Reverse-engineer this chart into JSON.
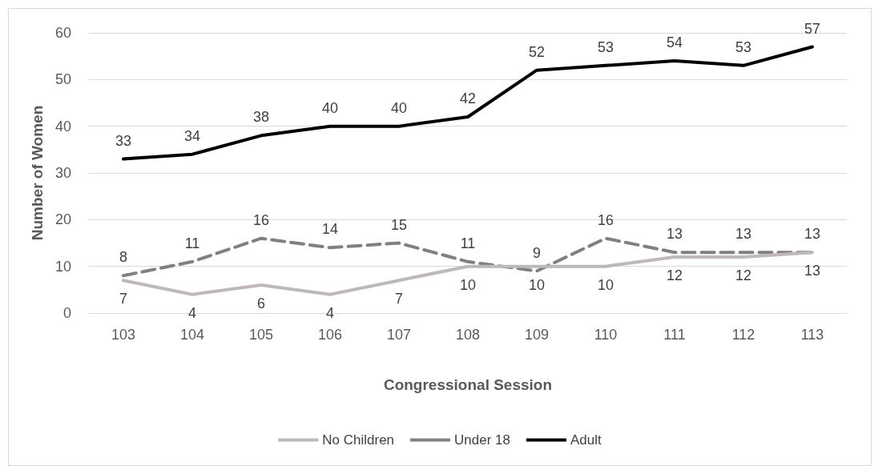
{
  "chart_data": {
    "type": "line",
    "xlabel": "Congressional Session",
    "ylabel": "Number of Women",
    "categories": [
      "103",
      "104",
      "105",
      "106",
      "107",
      "108",
      "109",
      "110",
      "111",
      "112",
      "113"
    ],
    "series": [
      {
        "name": "No Children",
        "color": "#bfb8b8",
        "line_style": "solid",
        "values": [
          7,
          4,
          6,
          4,
          7,
          10,
          10,
          10,
          12,
          12,
          13
        ]
      },
      {
        "name": "Under 18",
        "color": "#808080",
        "line_style": "dashed",
        "values": [
          8,
          11,
          16,
          14,
          15,
          11,
          9,
          16,
          13,
          13,
          13
        ]
      },
      {
        "name": "Adult",
        "color": "#000000",
        "line_style": "solid",
        "values": [
          33,
          34,
          38,
          40,
          40,
          42,
          52,
          53,
          54,
          53,
          57
        ]
      }
    ],
    "ylim": [
      0,
      60
    ],
    "yticks": [
      0,
      10,
      20,
      30,
      40,
      50,
      60
    ],
    "grid": "y",
    "legend": "bottom",
    "marker": "none",
    "data_labels": true
  }
}
